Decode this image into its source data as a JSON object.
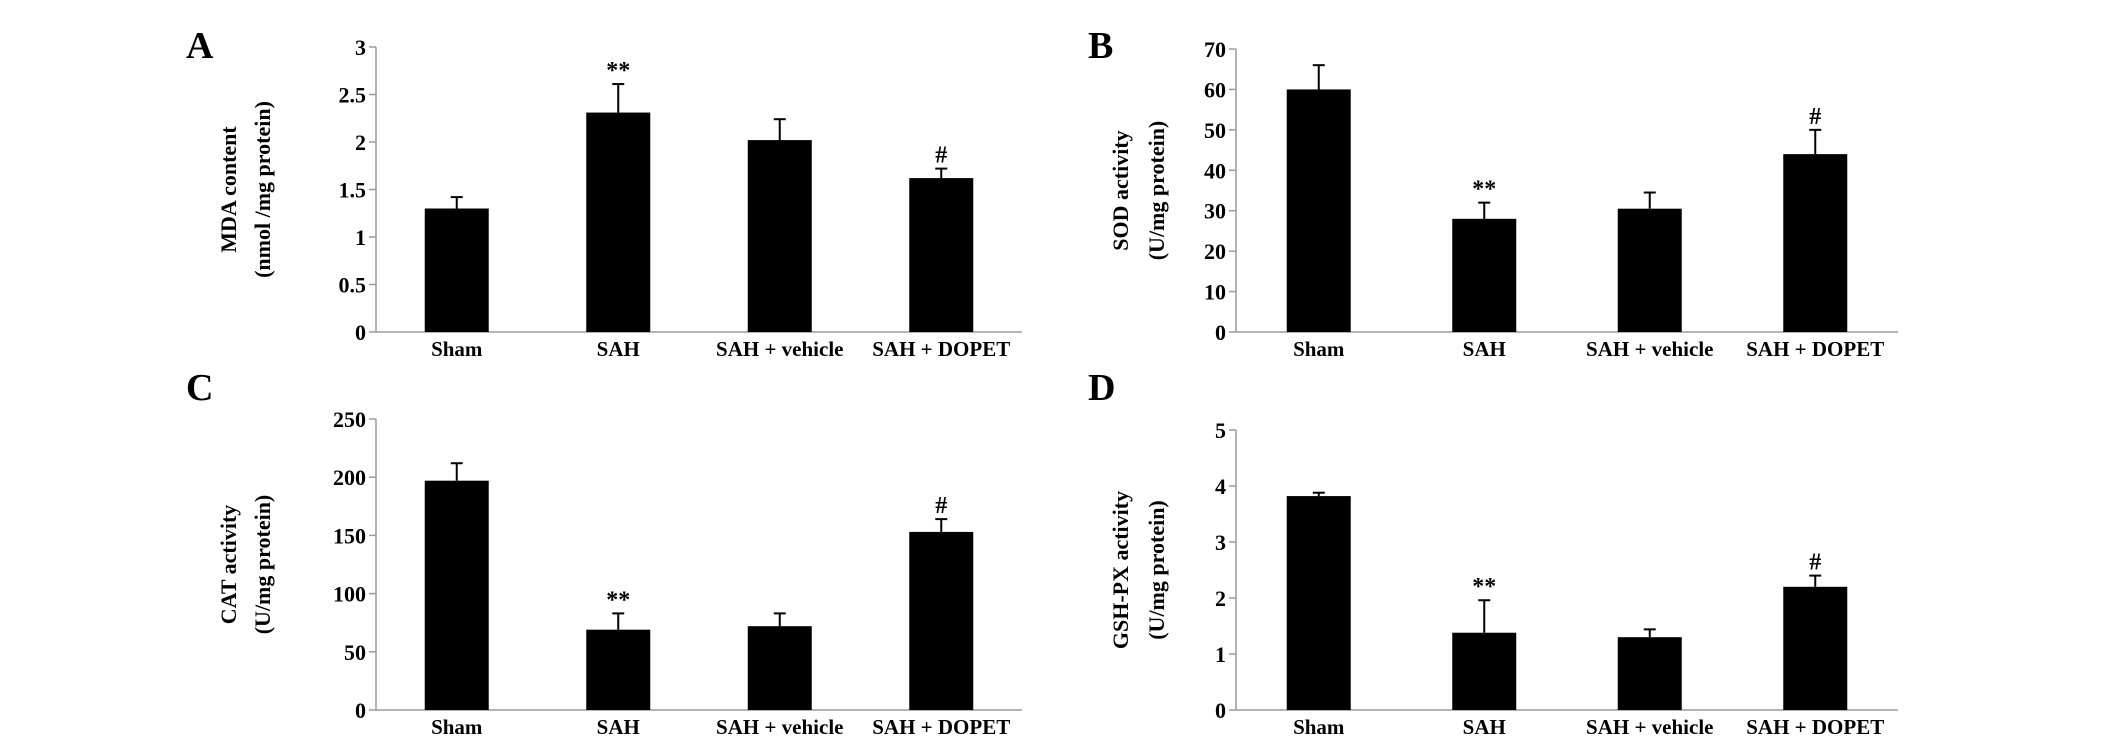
{
  "chart_data": [
    {
      "panel": "A",
      "type": "bar",
      "categories": [
        "Sham",
        "SAH",
        "SAH + vehicle",
        "SAH + DOPET"
      ],
      "values": [
        1.3,
        2.31,
        2.02,
        1.62
      ],
      "errors": [
        0.12,
        0.3,
        0.22,
        0.1
      ],
      "significance": [
        "",
        "**",
        "",
        "#"
      ],
      "ylabel": [
        "MDA content",
        "(nmol /mg protein)"
      ],
      "yticks": [
        "0",
        "0.5",
        "1",
        "1.5",
        "2",
        "2.5",
        "3"
      ],
      "ylim": [
        0,
        3
      ]
    },
    {
      "panel": "B",
      "type": "bar",
      "categories": [
        "Sham",
        "SAH",
        "SAH + vehicle",
        "SAH + DOPET"
      ],
      "values": [
        60,
        28,
        30.5,
        44
      ],
      "errors": [
        6,
        4,
        4,
        6
      ],
      "significance": [
        "",
        "**",
        "",
        "#"
      ],
      "ylabel": [
        "SOD activity",
        "(U/mg protein)"
      ],
      "yticks": [
        "0",
        "10",
        "20",
        "30",
        "40",
        "50",
        "60",
        "70"
      ],
      "ylim": [
        0,
        70
      ]
    },
    {
      "panel": "C",
      "type": "bar",
      "categories": [
        "Sham",
        "SAH",
        "SAH + vehicle",
        "SAH + DOPET"
      ],
      "values": [
        197,
        69,
        72,
        153
      ],
      "errors": [
        15,
        14,
        11,
        11
      ],
      "significance": [
        "",
        "**",
        "",
        "#"
      ],
      "ylabel": [
        "CAT activity",
        "(U/mg protein)"
      ],
      "yticks": [
        "0",
        "50",
        "100",
        "150",
        "200",
        "250"
      ],
      "ylim": [
        0,
        250
      ]
    },
    {
      "panel": "D",
      "type": "bar",
      "categories": [
        "Sham",
        "SAH",
        "SAH + vehicle",
        "SAH + DOPET"
      ],
      "values": [
        3.82,
        1.38,
        1.3,
        2.2
      ],
      "errors": [
        0.06,
        0.58,
        0.14,
        0.2
      ],
      "significance": [
        "",
        "**",
        "",
        "#"
      ],
      "ylabel": [
        "GSH-PX activity",
        "(U/mg protein)"
      ],
      "yticks": [
        "0",
        "1",
        "2",
        "3",
        "4",
        "5"
      ],
      "ylim": [
        0,
        5
      ]
    }
  ]
}
